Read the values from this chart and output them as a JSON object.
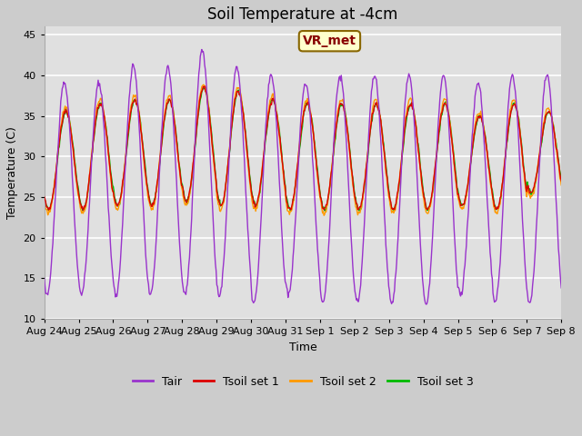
{
  "title": "Soil Temperature at -4cm",
  "xlabel": "Time",
  "ylabel": "Temperature (C)",
  "ylim": [
    10,
    46
  ],
  "yticks": [
    10,
    15,
    20,
    25,
    30,
    35,
    40,
    45
  ],
  "n_days": 15,
  "colors": {
    "Tair": "#9933cc",
    "Tsoil set 1": "#dd0000",
    "Tsoil set 2": "#ff9900",
    "Tsoil set 3": "#00bb00"
  },
  "legend_labels": [
    "Tair",
    "Tsoil set 1",
    "Tsoil set 2",
    "Tsoil set 3"
  ],
  "x_tick_labels": [
    "Aug 24",
    "Aug 25",
    "Aug 26",
    "Aug 27",
    "Aug 28",
    "Aug 29",
    "Aug 30",
    "Aug 31",
    "Sep 1",
    "Sep 2",
    "Sep 3",
    "Sep 4",
    "Sep 5",
    "Sep 6",
    "Sep 7",
    "Sep 8"
  ],
  "annotation_text": "VR_met",
  "fig_bg": "#cccccc",
  "plot_bg": "#e0e0e0",
  "grid_color": "#ffffff",
  "title_fontsize": 12,
  "label_fontsize": 9,
  "tick_fontsize": 8,
  "legend_fontsize": 9
}
